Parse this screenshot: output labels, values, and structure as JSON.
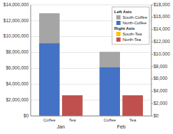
{
  "chart_data": {
    "type": "bar",
    "stacked": true,
    "categories": [
      "Jan",
      "Feb"
    ],
    "series": [
      {
        "name": "North-Coffee",
        "color": "#4472C4",
        "values": [
          9174251,
          6128078
        ],
        "axis": "y",
        "stack": "Coffee",
        "legend_group": "Left Axis"
      },
      {
        "name": "South-Coffee",
        "color": "#A5A5A5",
        "values": [
          3768424,
          1957886
        ],
        "axis": "y",
        "stack": "Coffee",
        "legend_group": "Left Axis"
      },
      {
        "name": "North-Tea",
        "color": "#C0504D",
        "values": [
          3350,
          3350
        ],
        "axis": "y2",
        "stack": "Tea",
        "legend_group": "Right Axis"
      },
      {
        "name": "South-Tea",
        "color": "#FFC000",
        "values": [
          9,
          8
        ],
        "axis": "y2",
        "stack": "Tea",
        "legend_group": "Right Axis"
      }
    ],
    "ylim": [
      0,
      14000000
    ],
    "yticks": [
      {
        "value": 0,
        "label": "$0"
      },
      {
        "value": 2000000,
        "label": "$2,000,000"
      },
      {
        "value": 4000000,
        "label": "$4,000,000"
      },
      {
        "value": 6000000,
        "label": "$6,000,000"
      },
      {
        "value": 8000000,
        "label": "$8,000,000"
      },
      {
        "value": 10000000,
        "label": "$10,000,000"
      },
      {
        "value": 12000000,
        "label": "$12,000,000"
      },
      {
        "value": 14000000,
        "label": "$14,000,000"
      }
    ],
    "y2lim": [
      0,
      18000
    ],
    "y2ticks": [
      {
        "value": 0,
        "label": "$0"
      },
      {
        "value": 2000,
        "label": "$2,000"
      },
      {
        "value": 4000,
        "label": "$4,000"
      },
      {
        "value": 6000,
        "label": "$6,000"
      },
      {
        "value": 8000,
        "label": "$8,000"
      },
      {
        "value": 10000,
        "label": "$10,000"
      },
      {
        "value": 12000,
        "label": "$12,000"
      },
      {
        "value": 14000,
        "label": "$14,000"
      },
      {
        "value": 16000,
        "label": "$16,000"
      },
      {
        "value": 18000,
        "label": "$18,000"
      }
    ],
    "grid": true,
    "legend": "upper right"
  }
}
